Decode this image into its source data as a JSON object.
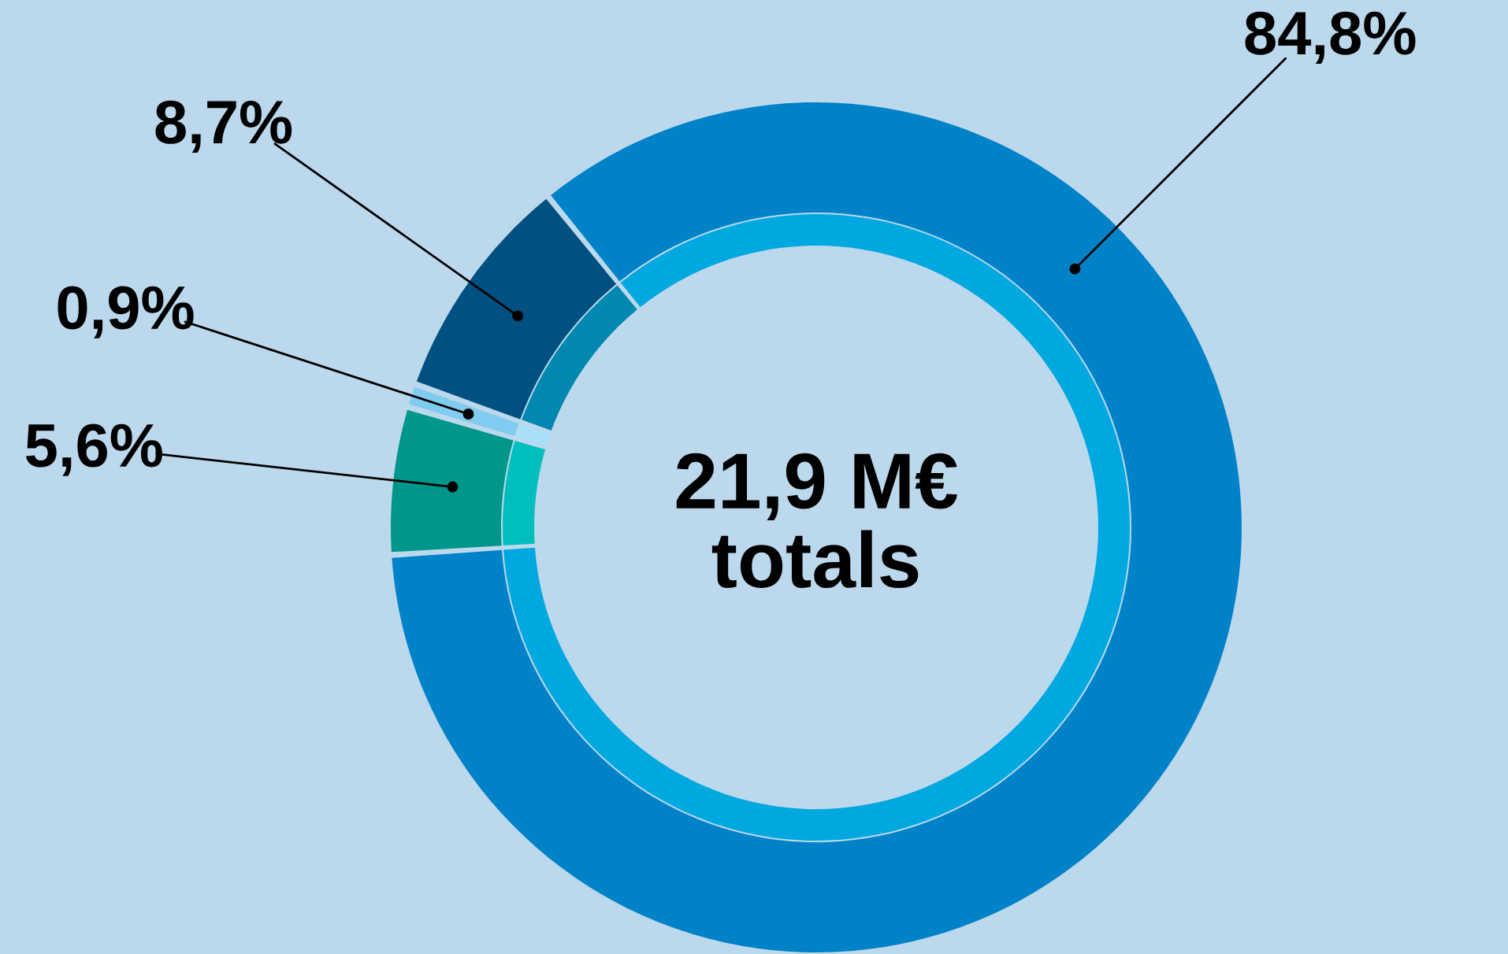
{
  "chart_data": {
    "type": "donut",
    "categories": [
      null,
      null,
      null,
      null
    ],
    "series": [
      {
        "colors": [
          "#00a8e0",
          "#00bebe",
          "#a8e0f8",
          "#0088b0"
        ],
        "values": [
          84.8,
          5.6,
          0.9,
          8.7
        ]
      },
      {
        "colors": [
          "#0082c8",
          "#00968c",
          "#80ccf0",
          "#005082"
        ],
        "values": [
          84.8,
          5.6,
          0.9,
          8.7
        ],
        "value_labels": [
          "84,8%",
          "5,6%",
          "0,9%",
          "8,7%"
        ]
      }
    ],
    "annotations": [
      "21,9 M€\ntotals"
    ],
    "legend": false
  }
}
